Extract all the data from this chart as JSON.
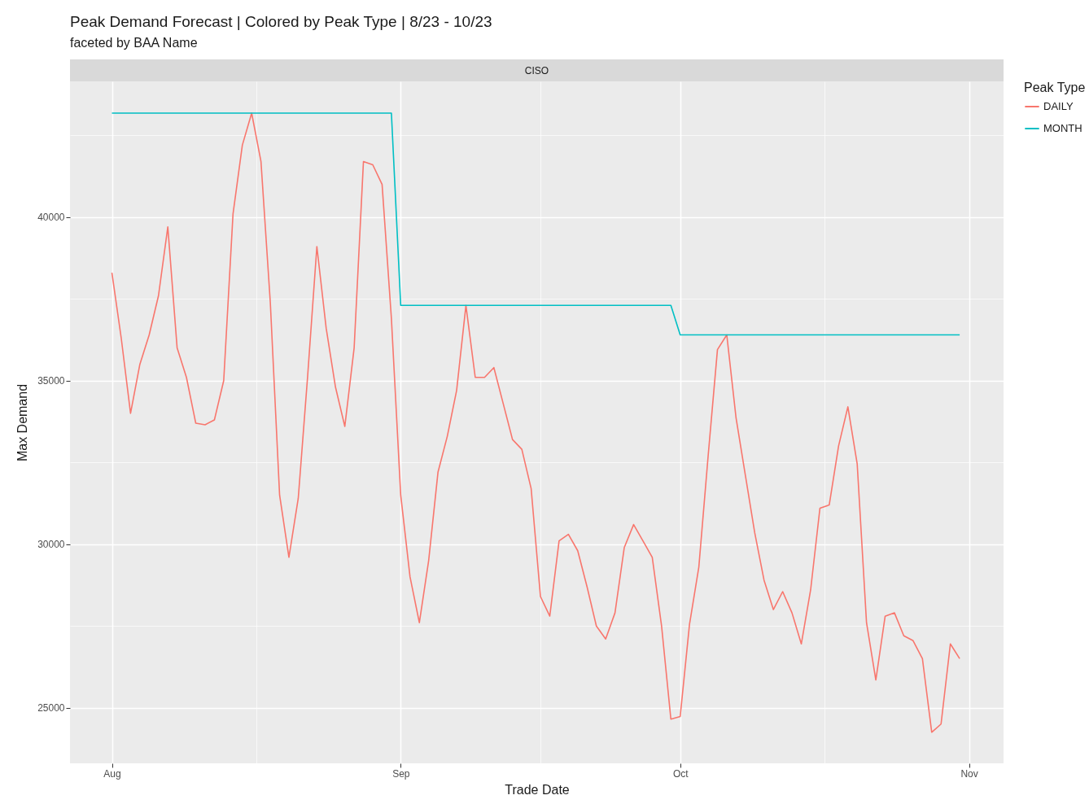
{
  "chart_data": {
    "type": "line",
    "title": "Peak Demand Forecast | Colored by Peak Type | 8/23 - 10/23",
    "subtitle": "faceted by BAA Name",
    "annotations": [
      "CISO"
    ],
    "xlabel": "Trade Date",
    "ylabel": "Max Demand",
    "legend_title": "Peak Type",
    "legend": "right",
    "grid": true,
    "x": [
      "--08-01",
      "--08-02",
      "--08-03",
      "--08-04",
      "--08-05",
      "--08-06",
      "--08-07",
      "--08-08",
      "--08-09",
      "--08-10",
      "--08-11",
      "--08-12",
      "--08-13",
      "--08-14",
      "--08-15",
      "--08-16",
      "--08-17",
      "--08-18",
      "--08-19",
      "--08-20",
      "--08-21",
      "--08-22",
      "--08-23",
      "--08-24",
      "--08-25",
      "--08-26",
      "--08-27",
      "--08-28",
      "--08-29",
      "--08-30",
      "--08-31",
      "--09-01",
      "--09-02",
      "--09-03",
      "--09-04",
      "--09-05",
      "--09-06",
      "--09-07",
      "--09-08",
      "--09-09",
      "--09-10",
      "--09-11",
      "--09-12",
      "--09-13",
      "--09-14",
      "--09-15",
      "--09-16",
      "--09-17",
      "--09-18",
      "--09-19",
      "--09-20",
      "--09-21",
      "--09-22",
      "--09-23",
      "--09-24",
      "--09-25",
      "--09-26",
      "--09-27",
      "--09-28",
      "--09-29",
      "--09-30",
      "--10-01",
      "--10-02",
      "--10-03",
      "--10-04",
      "--10-05",
      "--10-06",
      "--10-07",
      "--10-08",
      "--10-09",
      "--10-10",
      "--10-11",
      "--10-12",
      "--10-13",
      "--10-14",
      "--10-15",
      "--10-16",
      "--10-17",
      "--10-18",
      "--10-19",
      "--10-20",
      "--10-21",
      "--10-22",
      "--10-23",
      "--10-24",
      "--10-25",
      "--10-26",
      "--10-27",
      "--10-28",
      "--10-29",
      "--10-30",
      "--10-31"
    ],
    "series": [
      {
        "name": "DAILY",
        "color": "#f8766d",
        "values": [
          38300,
          36300,
          34000,
          35500,
          36400,
          37600,
          39700,
          36000,
          35100,
          33700,
          33650,
          33800,
          35000,
          40100,
          42200,
          43180,
          41700,
          37400,
          31500,
          29600,
          31400,
          35100,
          39100,
          36600,
          34800,
          33600,
          36000,
          41700,
          41600,
          41000,
          36900,
          31500,
          29000,
          27600,
          29500,
          32200,
          33300,
          34700,
          37300,
          35100,
          35100,
          35400,
          34300,
          33200,
          32900,
          31700,
          28400,
          27800,
          30100,
          30300,
          29800,
          28700,
          27500,
          27100,
          27900,
          29900,
          30600,
          30100,
          29600,
          27500,
          24650,
          24730,
          27550,
          29300,
          32700,
          35950,
          36400,
          33850,
          32100,
          30350,
          28900,
          28000,
          28550,
          27900,
          26950,
          28600,
          31100,
          31200,
          33000,
          34200,
          32450,
          27600,
          25850,
          27800,
          27900,
          27200,
          27050,
          26500,
          24250,
          24500,
          26950,
          26500
        ]
      },
      {
        "name": "MONTH",
        "color": "#00bfc4",
        "x": [
          "--08-01",
          "--08-31",
          "--09-01",
          "--09-30",
          "--10-01",
          "--10-31"
        ],
        "values": [
          43180,
          43180,
          37300,
          37300,
          36400,
          36400
        ]
      }
    ],
    "xlim": [
      "--07-27T12:00",
      "--11-04T17:00"
    ],
    "xticks": [
      {
        "value": "--08-01",
        "label": "Aug"
      },
      {
        "value": "--08-16T12:00",
        "label": null
      },
      {
        "value": "--09-01",
        "label": "Sep"
      },
      {
        "value": "--09-16",
        "label": null
      },
      {
        "value": "--10-01",
        "label": "Oct"
      },
      {
        "value": "--10-16T12:00",
        "label": null
      },
      {
        "value": "--11-01",
        "label": "Nov"
      }
    ],
    "ylim": [
      23300,
      44150
    ],
    "yticks": [
      25000,
      {
        "value": 27500,
        "label": null
      },
      30000,
      {
        "value": 32500,
        "label": null
      },
      35000,
      {
        "value": 37500,
        "label": null
      },
      40000,
      {
        "value": 42500,
        "label": null
      }
    ]
  }
}
